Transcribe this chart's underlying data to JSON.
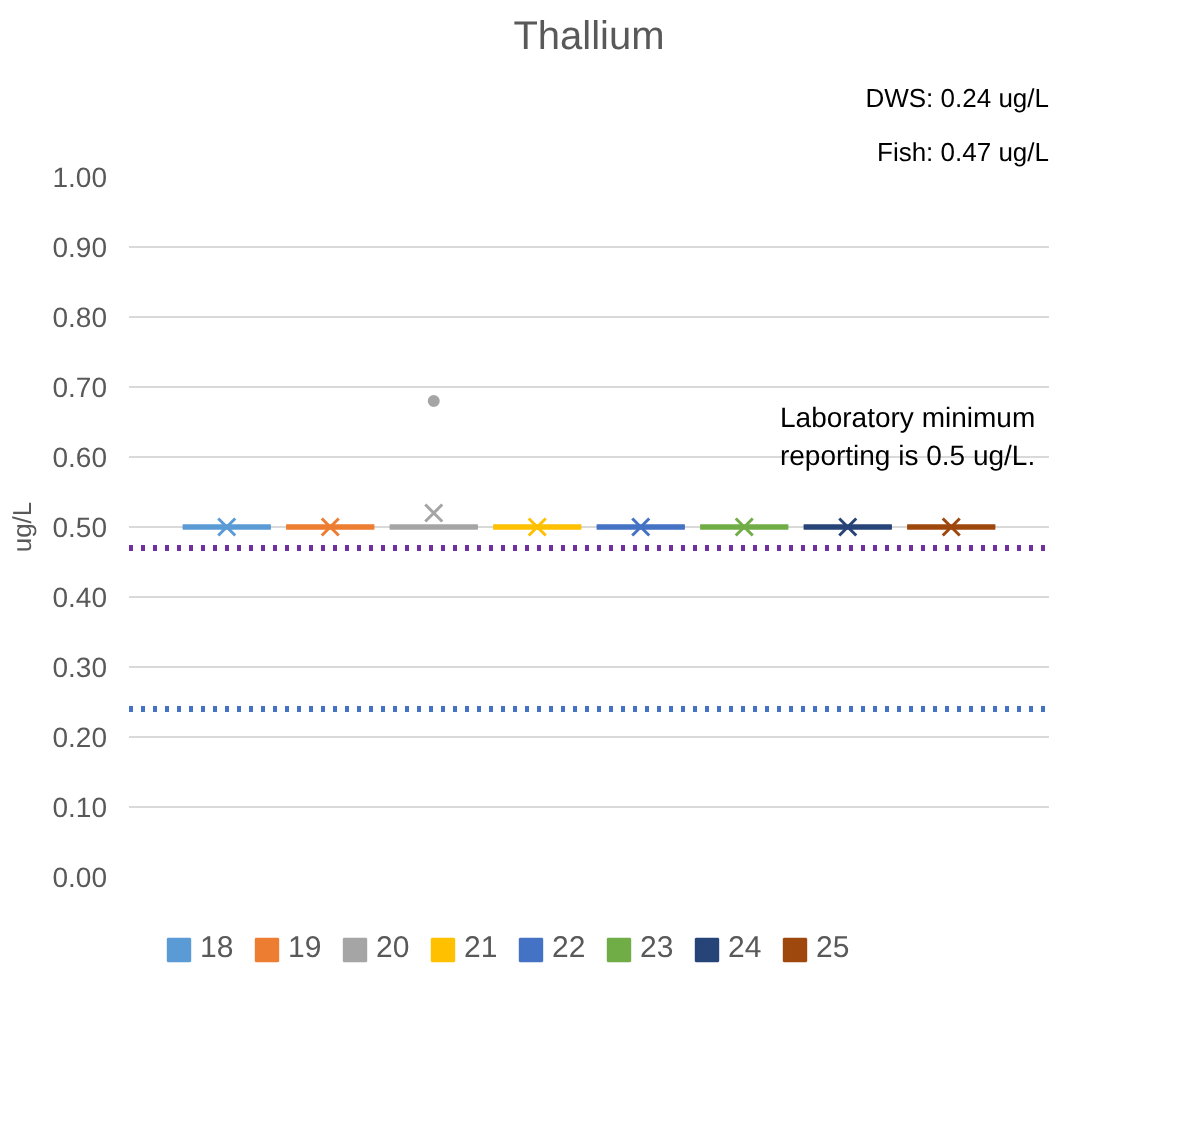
{
  "chart_data": {
    "type": "box",
    "title": "Thallium",
    "ylabel": "ug/L",
    "categories": [
      null
    ],
    "ylim": [
      0,
      1
    ],
    "yticks": [
      {
        "value": 0,
        "label": "0.00"
      },
      {
        "value": 0.1,
        "label": "0.10"
      },
      {
        "value": 0.2,
        "label": "0.20"
      },
      {
        "value": 0.3,
        "label": "0.30"
      },
      {
        "value": 0.4,
        "label": "0.40"
      },
      {
        "value": 0.5,
        "label": "0.50"
      },
      {
        "value": 0.6,
        "label": "0.60"
      },
      {
        "value": 0.7,
        "label": "0.70"
      },
      {
        "value": 0.8,
        "label": "0.80"
      },
      {
        "value": 0.9,
        "label": "0.90"
      },
      {
        "value": 1,
        "label": "1.00"
      }
    ],
    "tick_labels": "y",
    "grid": "y",
    "legend": "bottom",
    "series": [
      {
        "name": "18",
        "color": "#5b9bd5",
        "boxes": [
          {
            "low": 0.5,
            "q1": 0.5,
            "median": 0.5,
            "q3": 0.5,
            "high": 0.5,
            "mean": 0.5
          }
        ]
      },
      {
        "name": "19",
        "color": "#ed7d31",
        "boxes": [
          {
            "low": 0.5,
            "q1": 0.5,
            "median": 0.5,
            "q3": 0.5,
            "high": 0.5,
            "mean": 0.5
          }
        ]
      },
      {
        "name": "20",
        "color": "#a5a5a5",
        "boxes": [
          {
            "low": 0.5,
            "q1": 0.5,
            "median": 0.5,
            "q3": 0.5,
            "high": 0.5,
            "mean": 0.52,
            "outliers": [
              0.68
            ]
          }
        ]
      },
      {
        "name": "21",
        "color": "#ffc000",
        "boxes": [
          {
            "low": 0.5,
            "q1": 0.5,
            "median": 0.5,
            "q3": 0.5,
            "high": 0.5,
            "mean": 0.5
          }
        ]
      },
      {
        "name": "22",
        "color": "#4472c4",
        "boxes": [
          {
            "low": 0.5,
            "q1": 0.5,
            "median": 0.5,
            "q3": 0.5,
            "high": 0.5,
            "mean": 0.5
          }
        ]
      },
      {
        "name": "23",
        "color": "#70ad47",
        "boxes": [
          {
            "low": 0.5,
            "q1": 0.5,
            "median": 0.5,
            "q3": 0.5,
            "high": 0.5,
            "mean": 0.5
          }
        ]
      },
      {
        "name": "24",
        "color": "#264478",
        "boxes": [
          {
            "low": 0.5,
            "q1": 0.5,
            "median": 0.5,
            "q3": 0.5,
            "high": 0.5,
            "mean": 0.5
          }
        ]
      },
      {
        "name": "25",
        "color": "#9e480e",
        "boxes": [
          {
            "low": 0.5,
            "q1": 0.5,
            "median": 0.5,
            "q3": 0.5,
            "high": 0.5,
            "mean": 0.5
          }
        ]
      }
    ],
    "ref_lines": [
      {
        "axis": "y",
        "value": 0.47,
        "color": "#7030a0",
        "line_style": "dotted"
      },
      {
        "axis": "y",
        "value": 0.24,
        "color": "#4472c4",
        "line_style": "dotted"
      }
    ],
    "annotations": [
      "DWS: 0.24 ug/L",
      "Fish: 0.47 ug/L",
      "Laboratory minimum reporting is 0.5 ug/L."
    ]
  }
}
